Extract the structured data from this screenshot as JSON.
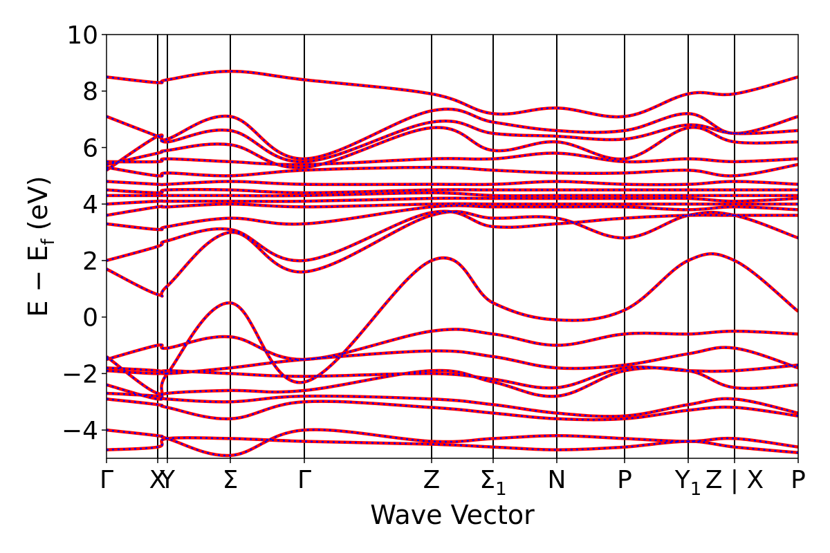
{
  "chart_data": {
    "type": "line",
    "xlabel": "Wave Vector",
    "ylabel": "E − E",
    "ylabel_sub": "f",
    "ylabel_unit": " (eV)",
    "ylim": [
      -5,
      10
    ],
    "yticks": [
      {
        "value": -4,
        "label": "−4"
      },
      {
        "value": -2,
        "label": "−2"
      },
      {
        "value": 0,
        "label": "0"
      },
      {
        "value": 2,
        "label": "2"
      },
      {
        "value": 4,
        "label": "4"
      },
      {
        "value": 6,
        "label": "6"
      },
      {
        "value": 8,
        "label": "8"
      },
      {
        "value": 10,
        "label": "10"
      }
    ],
    "grid": false,
    "xlim": [
      0,
      1
    ],
    "high_symmetry_points": [
      {
        "pos": 0.0,
        "label": "Γ",
        "sub": ""
      },
      {
        "pos": 0.074,
        "label": "X",
        "sub": ""
      },
      {
        "pos": 0.088,
        "label": "Y",
        "sub": ""
      },
      {
        "pos": 0.179,
        "label": "Σ",
        "sub": ""
      },
      {
        "pos": 0.286,
        "label": "Γ",
        "sub": ""
      },
      {
        "pos": 0.47,
        "label": "Z",
        "sub": ""
      },
      {
        "pos": 0.559,
        "label": "Σ",
        "sub": "1"
      },
      {
        "pos": 0.651,
        "label": "N",
        "sub": ""
      },
      {
        "pos": 0.749,
        "label": "P",
        "sub": ""
      },
      {
        "pos": 0.841,
        "label": "Y",
        "sub": "1"
      },
      {
        "pos": 0.908,
        "label": "Z | X",
        "sub": ""
      },
      {
        "pos": 1.0,
        "label": "P",
        "sub": ""
      }
    ],
    "series": [
      {
        "color": "#ff0000",
        "style": "solid",
        "bands": [
          [
            -4.7,
            -4.6,
            -4.3,
            -4.3,
            -4.4,
            -4.5,
            -4.6,
            -4.7,
            -4.6,
            -4.4,
            -4.6,
            -4.8
          ],
          [
            -4.0,
            -4.2,
            -4.3,
            -4.9,
            -4.0,
            -4.4,
            -4.3,
            -4.2,
            -4.3,
            -4.4,
            -4.3,
            -4.6
          ],
          [
            -2.9,
            -3.1,
            -3.2,
            -3.6,
            -3.0,
            -3.2,
            -3.4,
            -3.6,
            -3.6,
            -3.3,
            -3.2,
            -3.5
          ],
          [
            -2.7,
            -2.8,
            -2.9,
            -3.0,
            -2.8,
            -2.9,
            -3.1,
            -3.4,
            -3.5,
            -3.1,
            -2.9,
            -3.4
          ],
          [
            -2.4,
            -2.9,
            -2.7,
            -2.6,
            -2.6,
            -1.9,
            -2.3,
            -2.8,
            -1.9,
            -1.9,
            -2.5,
            -2.4
          ],
          [
            -1.9,
            -2.0,
            -1.9,
            -2.0,
            -2.1,
            -2.0,
            -2.2,
            -2.5,
            -1.8,
            -1.9,
            -1.9,
            -1.7
          ],
          [
            -1.8,
            -1.9,
            -2.0,
            -1.8,
            -1.5,
            -1.2,
            -1.4,
            -1.8,
            -1.7,
            -1.3,
            -1.1,
            -1.8
          ],
          [
            -1.5,
            -1.0,
            -1.1,
            -0.7,
            -1.5,
            -0.5,
            -0.6,
            -1.0,
            -0.6,
            -0.6,
            -0.5,
            -0.6
          ],
          [
            -1.4,
            -2.7,
            -2.0,
            0.5,
            -2.3,
            2.0,
            0.5,
            -0.1,
            0.25,
            2.0,
            2.0,
            0.2
          ],
          [
            1.7,
            0.8,
            1.1,
            3.0,
            1.6,
            3.6,
            3.5,
            3.5,
            2.8,
            3.6,
            3.6,
            2.8
          ],
          [
            2.0,
            2.5,
            2.7,
            3.1,
            2.0,
            3.7,
            3.2,
            3.3,
            3.5,
            3.6,
            3.6,
            3.6
          ],
          [
            3.3,
            3.1,
            3.2,
            3.5,
            3.3,
            3.9,
            3.9,
            3.9,
            3.9,
            3.8,
            3.9,
            3.8
          ],
          [
            3.6,
            3.9,
            3.9,
            4.0,
            3.9,
            4.0,
            4.0,
            4.0,
            4.0,
            4.0,
            4.0,
            4.0
          ],
          [
            4.0,
            4.1,
            4.1,
            4.1,
            4.1,
            4.2,
            4.2,
            4.2,
            4.2,
            4.2,
            4.1,
            4.2
          ],
          [
            4.3,
            4.3,
            4.3,
            4.3,
            4.3,
            4.4,
            4.3,
            4.3,
            4.3,
            4.3,
            4.3,
            4.3
          ],
          [
            4.5,
            4.4,
            4.5,
            4.5,
            4.4,
            4.5,
            4.5,
            4.5,
            4.5,
            4.5,
            4.5,
            4.5
          ],
          [
            4.8,
            4.7,
            4.7,
            4.8,
            4.7,
            4.7,
            4.7,
            4.8,
            4.7,
            4.7,
            4.8,
            4.7
          ],
          [
            5.3,
            5.0,
            5.1,
            5.0,
            5.2,
            5.3,
            5.2,
            5.1,
            5.1,
            5.2,
            5.0,
            5.4
          ],
          [
            5.5,
            5.5,
            5.6,
            5.5,
            5.4,
            5.6,
            5.6,
            5.8,
            5.5,
            5.6,
            5.5,
            5.6
          ],
          [
            5.4,
            5.8,
            5.9,
            6.1,
            5.3,
            6.7,
            5.9,
            6.2,
            5.6,
            6.7,
            6.2,
            6.2
          ],
          [
            5.2,
            6.4,
            6.2,
            6.6,
            5.5,
            6.9,
            6.5,
            6.4,
            6.3,
            6.8,
            6.5,
            6.6
          ],
          [
            7.1,
            6.4,
            6.3,
            7.1,
            5.6,
            7.3,
            6.9,
            6.6,
            6.6,
            7.2,
            6.5,
            7.1
          ],
          [
            8.5,
            8.3,
            8.4,
            8.7,
            8.4,
            7.9,
            7.2,
            7.4,
            7.1,
            7.9,
            7.9,
            8.5
          ]
        ]
      },
      {
        "color": "#0000ff",
        "style": "dotted",
        "bands": [
          [
            -4.7,
            -4.6,
            -4.3,
            -4.3,
            -4.4,
            -4.5,
            -4.6,
            -4.7,
            -4.6,
            -4.4,
            -4.6,
            -4.8
          ],
          [
            -4.0,
            -4.2,
            -4.3,
            -4.9,
            -4.0,
            -4.4,
            -4.3,
            -4.2,
            -4.3,
            -4.4,
            -4.3,
            -4.6
          ],
          [
            -2.9,
            -3.1,
            -3.2,
            -3.6,
            -3.0,
            -3.2,
            -3.4,
            -3.6,
            -3.6,
            -3.3,
            -3.2,
            -3.5
          ],
          [
            -2.7,
            -2.8,
            -2.9,
            -3.0,
            -2.8,
            -2.9,
            -3.1,
            -3.4,
            -3.5,
            -3.1,
            -2.9,
            -3.4
          ],
          [
            -2.4,
            -2.9,
            -2.7,
            -2.6,
            -2.6,
            -1.9,
            -2.3,
            -2.8,
            -1.9,
            -1.9,
            -2.5,
            -2.4
          ],
          [
            -1.9,
            -2.0,
            -1.9,
            -2.0,
            -2.1,
            -2.0,
            -2.2,
            -2.5,
            -1.8,
            -1.9,
            -1.9,
            -1.7
          ],
          [
            -1.8,
            -1.9,
            -2.0,
            -1.8,
            -1.5,
            -1.2,
            -1.4,
            -1.8,
            -1.7,
            -1.3,
            -1.1,
            -1.8
          ],
          [
            -1.5,
            -1.0,
            -1.1,
            -0.7,
            -1.5,
            -0.5,
            -0.6,
            -1.0,
            -0.6,
            -0.6,
            -0.5,
            -0.6
          ],
          [
            -1.4,
            -2.7,
            -2.0,
            0.5,
            -2.3,
            2.0,
            0.5,
            -0.1,
            0.25,
            2.0,
            2.0,
            0.2
          ],
          [
            1.7,
            0.8,
            1.1,
            3.0,
            1.6,
            3.6,
            3.5,
            3.5,
            2.8,
            3.6,
            3.6,
            2.8
          ],
          [
            2.0,
            2.5,
            2.7,
            3.1,
            2.0,
            3.7,
            3.2,
            3.3,
            3.5,
            3.6,
            3.6,
            3.6
          ],
          [
            3.3,
            3.1,
            3.2,
            3.5,
            3.3,
            3.9,
            3.9,
            3.9,
            3.9,
            3.8,
            3.9,
            3.8
          ],
          [
            3.6,
            3.9,
            3.9,
            4.0,
            3.9,
            4.0,
            4.0,
            4.0,
            4.0,
            4.0,
            4.0,
            4.0
          ],
          [
            4.0,
            4.1,
            4.1,
            4.1,
            4.1,
            4.2,
            4.2,
            4.2,
            4.2,
            4.2,
            4.1,
            4.2
          ],
          [
            4.3,
            4.3,
            4.3,
            4.3,
            4.3,
            4.4,
            4.3,
            4.3,
            4.3,
            4.3,
            4.3,
            4.3
          ],
          [
            4.5,
            4.4,
            4.5,
            4.5,
            4.4,
            4.5,
            4.5,
            4.5,
            4.5,
            4.5,
            4.5,
            4.5
          ],
          [
            4.8,
            4.7,
            4.7,
            4.8,
            4.7,
            4.7,
            4.7,
            4.8,
            4.7,
            4.7,
            4.8,
            4.7
          ],
          [
            5.3,
            5.0,
            5.1,
            5.0,
            5.2,
            5.3,
            5.2,
            5.1,
            5.1,
            5.2,
            5.0,
            5.4
          ],
          [
            5.5,
            5.5,
            5.6,
            5.5,
            5.4,
            5.6,
            5.6,
            5.8,
            5.5,
            5.6,
            5.5,
            5.6
          ],
          [
            5.4,
            5.8,
            5.9,
            6.1,
            5.3,
            6.7,
            5.9,
            6.2,
            5.6,
            6.7,
            6.2,
            6.2
          ],
          [
            5.2,
            6.4,
            6.2,
            6.6,
            5.5,
            6.9,
            6.5,
            6.4,
            6.3,
            6.8,
            6.5,
            6.6
          ],
          [
            7.1,
            6.4,
            6.3,
            7.1,
            5.6,
            7.3,
            6.9,
            6.6,
            6.6,
            7.2,
            6.5,
            7.1
          ],
          [
            8.5,
            8.3,
            8.4,
            8.7,
            8.4,
            7.9,
            7.2,
            7.4,
            7.1,
            7.9,
            7.9,
            8.5
          ]
        ]
      }
    ]
  }
}
